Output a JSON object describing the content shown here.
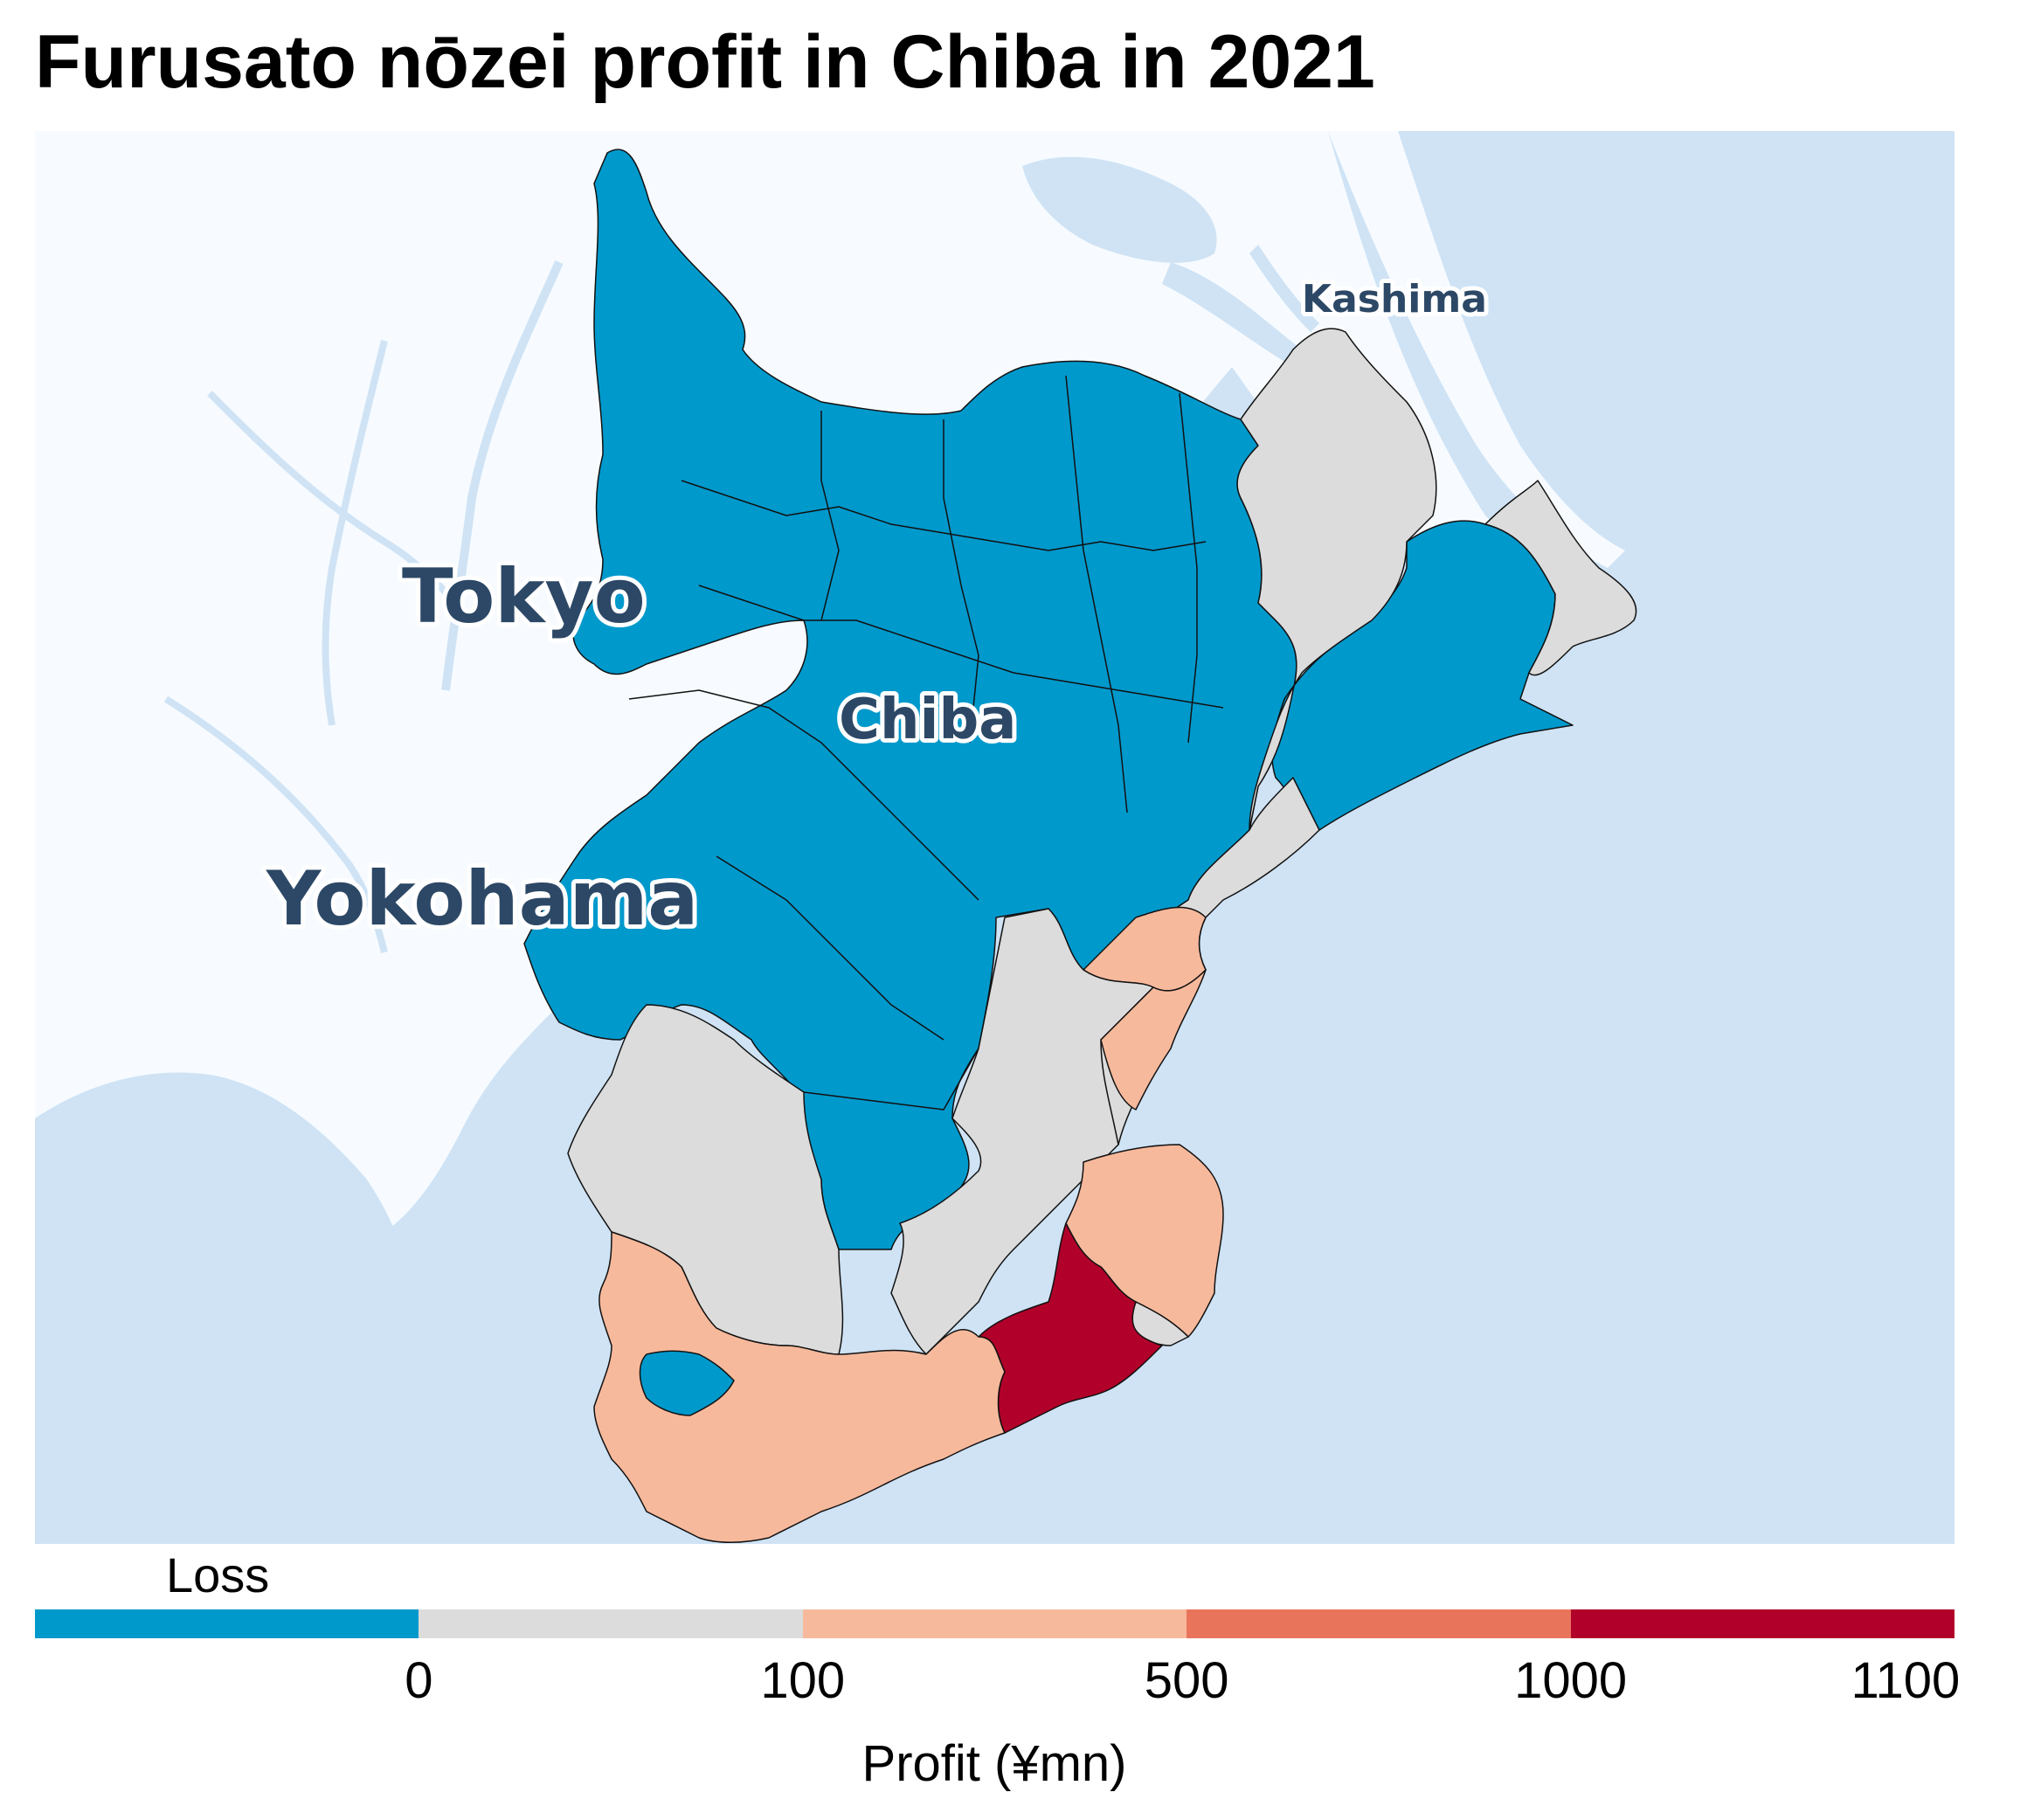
{
  "title": "Furusato nōzei profit in Chiba in 2021",
  "map": {
    "labels": {
      "kashima": "Kashima",
      "tokyo": "Tokyo",
      "chiba": "Chiba",
      "yokohama": "Yokohama"
    },
    "colors": {
      "sea": "#cfe3f5",
      "land": "#f7fbff",
      "river": "#cfe3f5",
      "border": "#111111"
    }
  },
  "legend": {
    "loss_label": "Loss",
    "axis_title": "Profit (¥mn)",
    "ticks": [
      "0",
      "100",
      "500",
      "1000",
      "1100"
    ],
    "bins": [
      {
        "range": "Loss",
        "color": "#0099cc"
      },
      {
        "range": "0–100",
        "color": "#dcdcdc"
      },
      {
        "range": "100–500",
        "color": "#f7b99c"
      },
      {
        "range": "500–1000",
        "color": "#e8745c"
      },
      {
        "range": "1000–1100",
        "color": "#b1002a"
      }
    ]
  },
  "chart_data": {
    "type": "choropleth",
    "title": "Furusato nōzei profit in Chiba in 2021",
    "legend_title": "Profit (¥mn)",
    "breaks": [
      0,
      100,
      500,
      1000,
      1100
    ],
    "categories": [
      "Loss",
      "0–100",
      "100–500",
      "500–1000",
      "1000–1100"
    ],
    "colors": [
      "#0099cc",
      "#dcdcdc",
      "#f7b99c",
      "#e8745c",
      "#b1002a"
    ]
  }
}
